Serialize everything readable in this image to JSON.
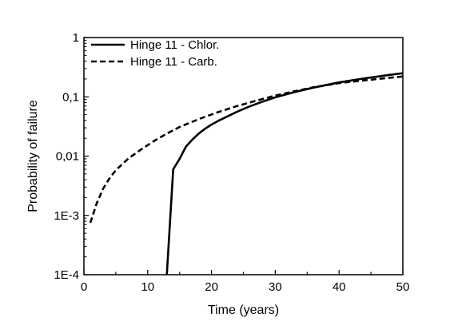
{
  "chart_data": {
    "type": "line",
    "xlabel": "Time (years)",
    "ylabel": "Probability of failure",
    "xlim": [
      0,
      50
    ],
    "ylim": [
      0.0001,
      1
    ],
    "yscale": "log",
    "x_ticks": [
      {
        "value": 0,
        "label": "0"
      },
      {
        "value": 10,
        "label": "10"
      },
      {
        "value": 20,
        "label": "20"
      },
      {
        "value": 30,
        "label": "30"
      },
      {
        "value": 40,
        "label": "40"
      },
      {
        "value": 50,
        "label": "50"
      }
    ],
    "y_ticks": [
      {
        "value": 0.0001,
        "label": "1E-4"
      },
      {
        "value": 0.001,
        "label": "1E-3"
      },
      {
        "value": 0.01,
        "label": "0,01"
      },
      {
        "value": 0.1,
        "label": "0,1"
      },
      {
        "value": 1,
        "label": "1"
      }
    ],
    "legend_position": "top-left",
    "grid": false,
    "series": [
      {
        "name": "Hinge 11 - Chlor.",
        "style": "solid",
        "color": "#000000",
        "x": [
          13,
          14,
          15,
          16,
          17,
          18,
          19,
          20,
          21,
          22,
          24,
          26,
          28,
          30,
          33,
          36,
          40,
          44,
          48,
          50
        ],
        "y": [
          0.0001,
          0.006,
          0.009,
          0.0145,
          0.019,
          0.024,
          0.029,
          0.034,
          0.039,
          0.044,
          0.056,
          0.069,
          0.083,
          0.098,
          0.12,
          0.143,
          0.175,
          0.205,
          0.235,
          0.25
        ]
      },
      {
        "name": "Hinge 11 - Carb.",
        "style": "dashed",
        "color": "#000000",
        "x": [
          1,
          2,
          3,
          4,
          5,
          7,
          9,
          11,
          13,
          15,
          18,
          21,
          24,
          27,
          30,
          33,
          36,
          40,
          44,
          48,
          50
        ],
        "y": [
          0.00075,
          0.0016,
          0.0028,
          0.0042,
          0.0058,
          0.0092,
          0.013,
          0.018,
          0.024,
          0.031,
          0.042,
          0.055,
          0.07,
          0.086,
          0.105,
          0.124,
          0.145,
          0.17,
          0.19,
          0.21,
          0.22
        ]
      }
    ]
  }
}
